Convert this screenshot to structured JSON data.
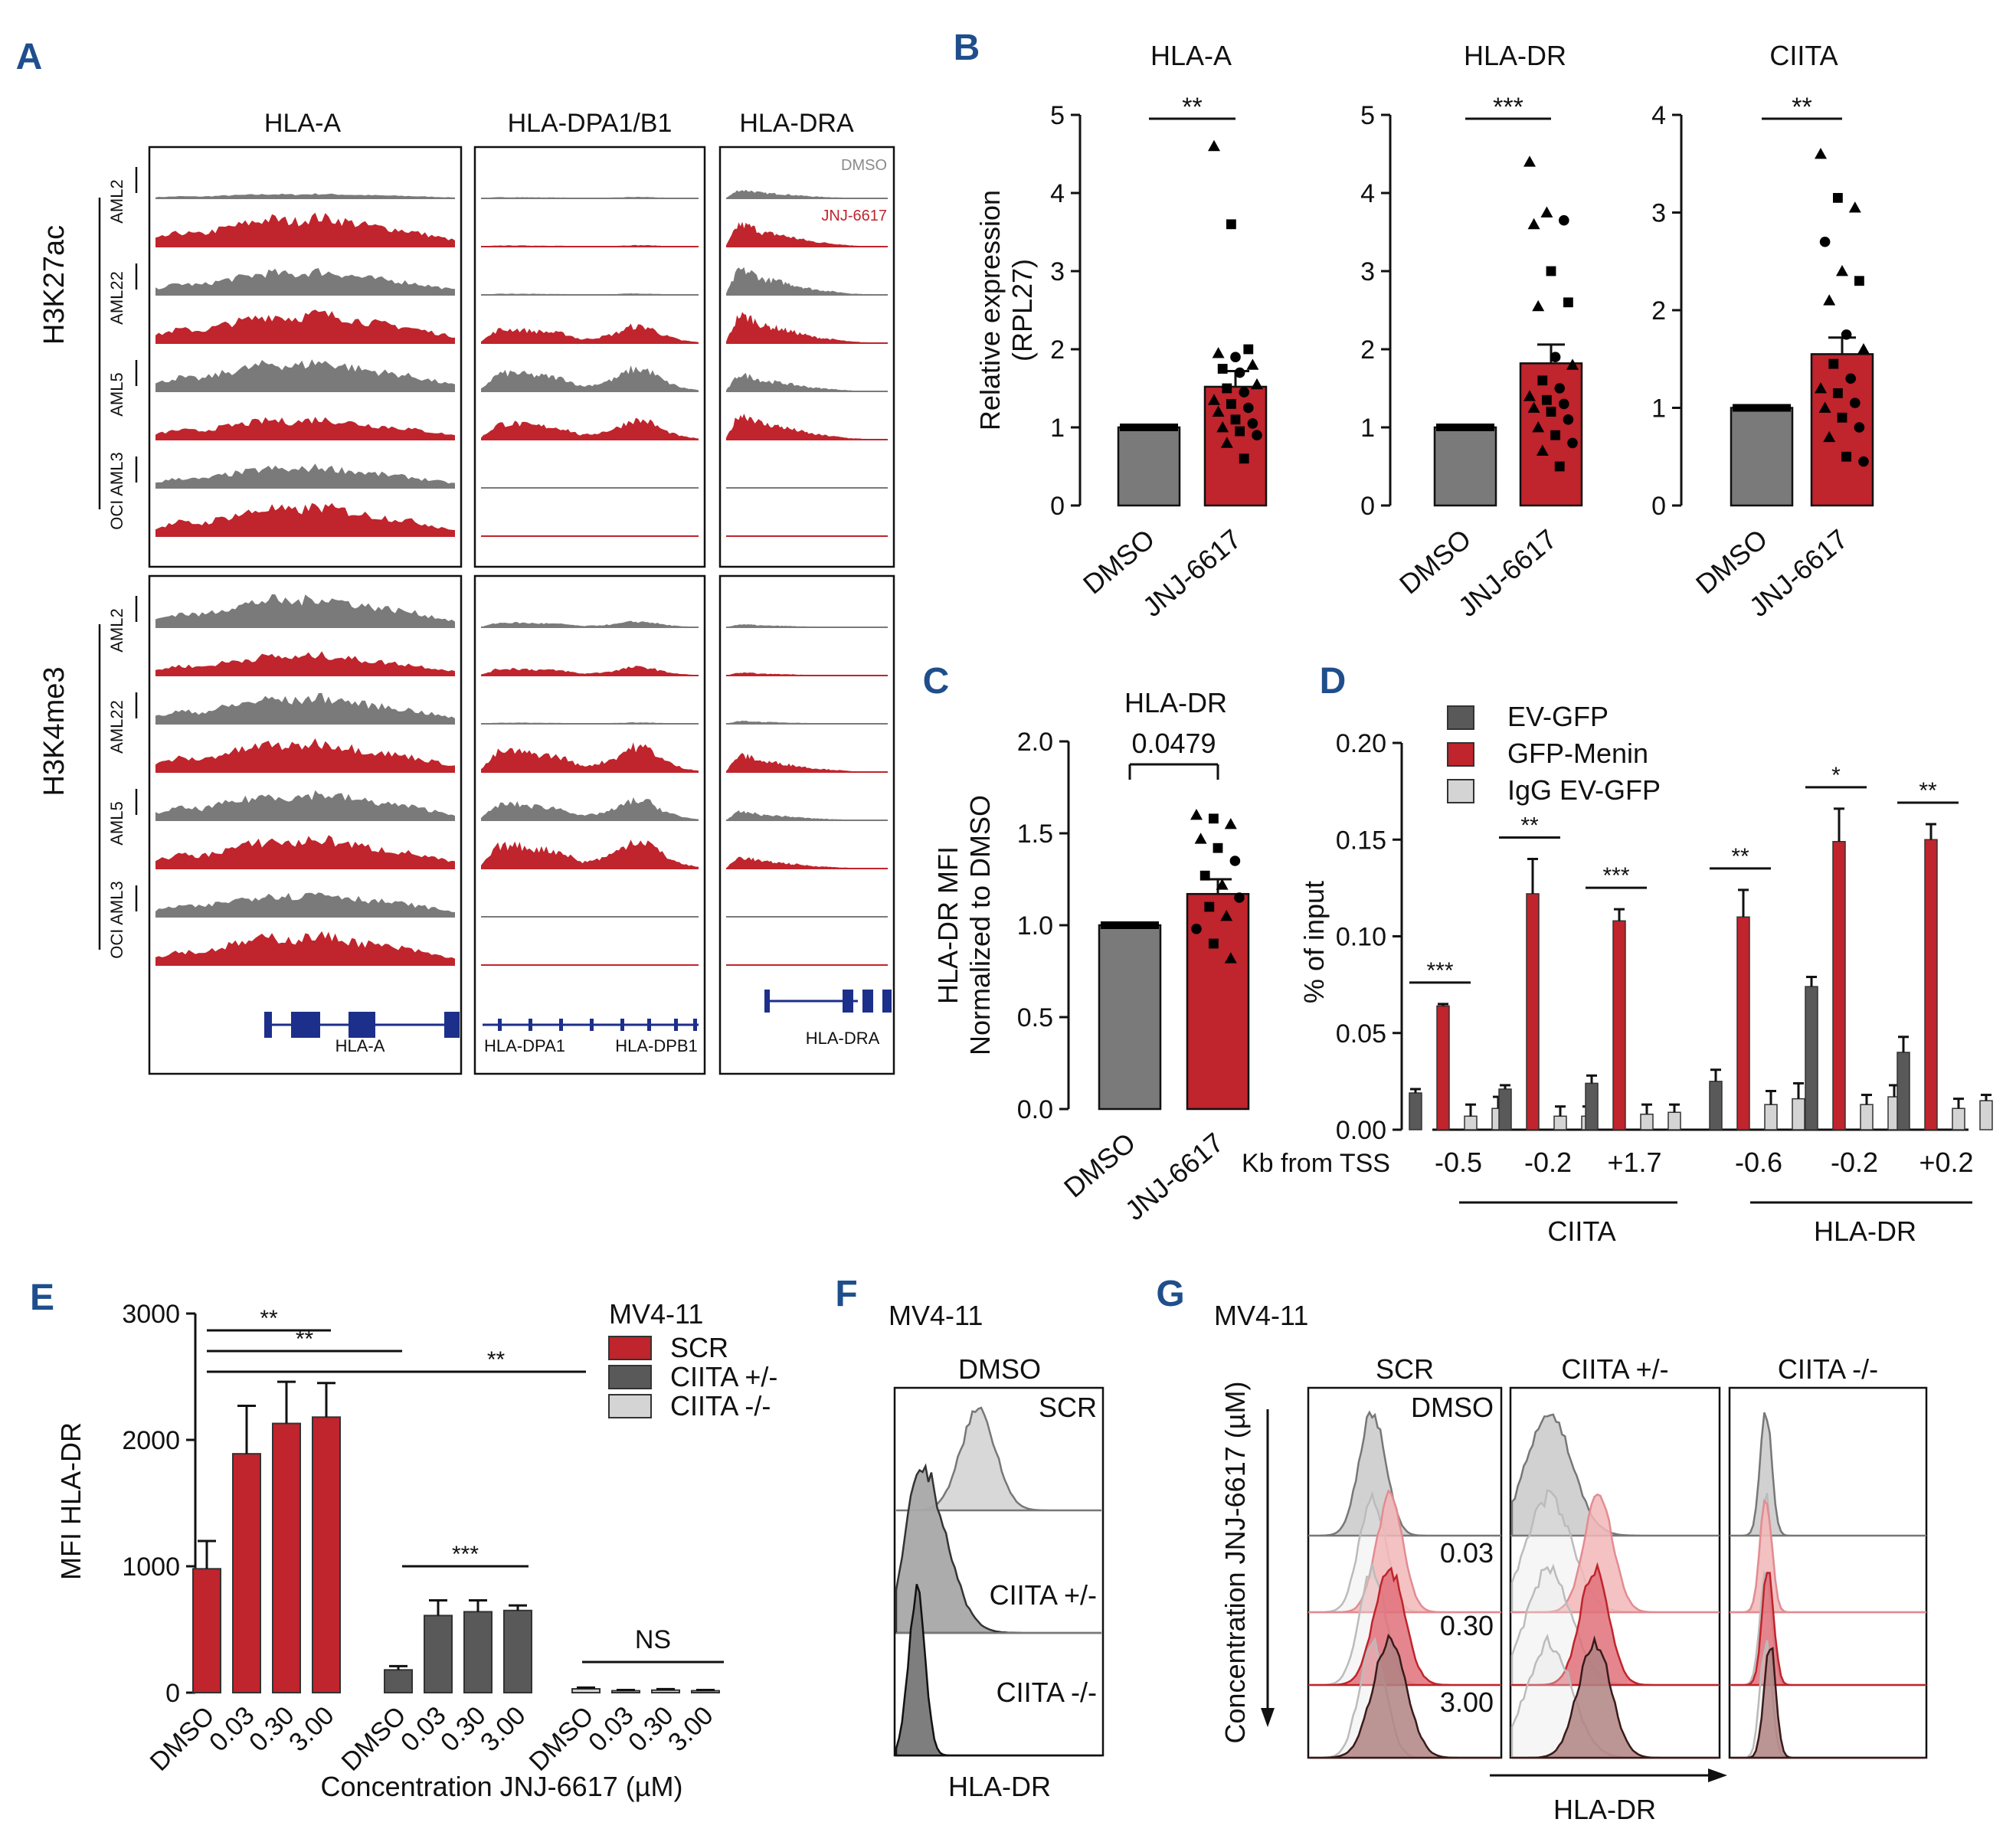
{
  "colors": {
    "red": "#c0242c",
    "grey": "#7a7a7a",
    "lightgrey": "#d4d4d4",
    "darkgrey": "#595959",
    "gene": "#1c2f8a",
    "letter": "#1f4e8c"
  },
  "panelA": {
    "letter": "A",
    "loci": [
      "HLA-A",
      "HLA-DPA1/B1",
      "HLA-DRA"
    ],
    "marks": [
      "H3K27ac",
      "H3K4me3"
    ],
    "samples": [
      "AML2",
      "AML22",
      "AML5",
      "OCI AML3"
    ],
    "legend": {
      "dmso": "DMSO",
      "jnj": "JNJ-6617"
    },
    "genes": [
      "HLA-A",
      "HLA-DPA1",
      "HLA-DPB1",
      "HLA-DRA"
    ]
  },
  "chart_data": [
    {
      "id": "B1",
      "letter": "B",
      "type": "bar",
      "title": "HLA-A",
      "ylabel": [
        "Relative expression",
        "(RPL27)"
      ],
      "categories": [
        "DMSO",
        "JNJ-6617"
      ],
      "values": [
        1.0,
        1.52
      ],
      "errors": [
        0.02,
        0.2
      ],
      "ylim": [
        0,
        5
      ],
      "yticks": [
        0,
        1,
        2,
        3,
        4,
        5
      ],
      "significance": "**",
      "points": [
        {
          "y": 4.6,
          "m": "tri"
        },
        {
          "y": 3.6,
          "m": "sq"
        },
        {
          "y": 2.0,
          "m": "sq"
        },
        {
          "y": 1.95,
          "m": "tri"
        },
        {
          "y": 1.9,
          "m": "dot"
        },
        {
          "y": 1.8,
          "m": "tri"
        },
        {
          "y": 1.75,
          "m": "sq"
        },
        {
          "y": 1.7,
          "m": "dot"
        },
        {
          "y": 1.55,
          "m": "tri"
        },
        {
          "y": 1.5,
          "m": "sq"
        },
        {
          "y": 1.45,
          "m": "dot"
        },
        {
          "y": 1.35,
          "m": "tri"
        },
        {
          "y": 1.3,
          "m": "sq"
        },
        {
          "y": 1.25,
          "m": "dot"
        },
        {
          "y": 1.2,
          "m": "tri"
        },
        {
          "y": 1.1,
          "m": "sq"
        },
        {
          "y": 1.05,
          "m": "dot"
        },
        {
          "y": 1.0,
          "m": "tri"
        },
        {
          "y": 0.95,
          "m": "sq"
        },
        {
          "y": 0.9,
          "m": "dot"
        },
        {
          "y": 0.8,
          "m": "tri"
        },
        {
          "y": 0.6,
          "m": "sq"
        }
      ]
    },
    {
      "id": "B2",
      "type": "bar",
      "title": "HLA-DR",
      "categories": [
        "DMSO",
        "JNJ-6617"
      ],
      "values": [
        1.0,
        1.82
      ],
      "errors": [
        0.02,
        0.24
      ],
      "ylim": [
        0,
        5
      ],
      "yticks": [
        0,
        1,
        2,
        3,
        4,
        5
      ],
      "significance": "***",
      "points": [
        {
          "y": 4.4,
          "m": "tri"
        },
        {
          "y": 3.75,
          "m": "tri"
        },
        {
          "y": 3.65,
          "m": "dot"
        },
        {
          "y": 3.6,
          "m": "tri"
        },
        {
          "y": 3.0,
          "m": "sq"
        },
        {
          "y": 2.6,
          "m": "sq"
        },
        {
          "y": 2.55,
          "m": "tri"
        },
        {
          "y": 1.9,
          "m": "dot"
        },
        {
          "y": 1.8,
          "m": "tri"
        },
        {
          "y": 1.6,
          "m": "sq"
        },
        {
          "y": 1.5,
          "m": "dot"
        },
        {
          "y": 1.4,
          "m": "tri"
        },
        {
          "y": 1.35,
          "m": "sq"
        },
        {
          "y": 1.3,
          "m": "dot"
        },
        {
          "y": 1.25,
          "m": "tri"
        },
        {
          "y": 1.2,
          "m": "sq"
        },
        {
          "y": 1.1,
          "m": "dot"
        },
        {
          "y": 1.0,
          "m": "tri"
        },
        {
          "y": 0.9,
          "m": "sq"
        },
        {
          "y": 0.8,
          "m": "dot"
        },
        {
          "y": 0.7,
          "m": "tri"
        },
        {
          "y": 0.5,
          "m": "sq"
        }
      ]
    },
    {
      "id": "B3",
      "type": "bar",
      "title": "CIITA",
      "categories": [
        "DMSO",
        "JNJ-6617"
      ],
      "values": [
        1.0,
        1.55
      ],
      "errors": [
        0.02,
        0.17
      ],
      "ylim": [
        0,
        4
      ],
      "yticks": [
        0,
        1,
        2,
        3,
        4
      ],
      "significance": "**",
      "points": [
        {
          "y": 3.6,
          "m": "tri"
        },
        {
          "y": 3.15,
          "m": "sq"
        },
        {
          "y": 3.05,
          "m": "tri"
        },
        {
          "y": 2.7,
          "m": "dot"
        },
        {
          "y": 2.4,
          "m": "tri"
        },
        {
          "y": 2.3,
          "m": "sq"
        },
        {
          "y": 2.1,
          "m": "tri"
        },
        {
          "y": 1.75,
          "m": "dot"
        },
        {
          "y": 1.6,
          "m": "tri"
        },
        {
          "y": 1.45,
          "m": "sq"
        },
        {
          "y": 1.3,
          "m": "dot"
        },
        {
          "y": 1.2,
          "m": "tri"
        },
        {
          "y": 1.15,
          "m": "sq"
        },
        {
          "y": 1.05,
          "m": "dot"
        },
        {
          "y": 1.0,
          "m": "tri"
        },
        {
          "y": 0.9,
          "m": "sq"
        },
        {
          "y": 0.8,
          "m": "dot"
        },
        {
          "y": 0.7,
          "m": "tri"
        },
        {
          "y": 0.5,
          "m": "sq"
        },
        {
          "y": 0.45,
          "m": "dot"
        }
      ]
    },
    {
      "id": "C",
      "letter": "C",
      "type": "bar",
      "title": "HLA-DR",
      "ylabel": [
        "HLA-DR MFI",
        "Normalized to DMSO"
      ],
      "categories": [
        "DMSO",
        "JNJ-6617"
      ],
      "values": [
        1.0,
        1.17
      ],
      "errors": [
        0.01,
        0.08
      ],
      "ylim": [
        0,
        2.0
      ],
      "yticks": [
        "0.0",
        "0.5",
        "1.0",
        "1.5",
        "2.0"
      ],
      "pvalue": "0.0479",
      "points": [
        {
          "y": 1.6,
          "m": "tri"
        },
        {
          "y": 1.58,
          "m": "sq"
        },
        {
          "y": 1.55,
          "m": "tri"
        },
        {
          "y": 1.47,
          "m": "tri"
        },
        {
          "y": 1.42,
          "m": "sq"
        },
        {
          "y": 1.35,
          "m": "dot"
        },
        {
          "y": 1.27,
          "m": "sq"
        },
        {
          "y": 1.22,
          "m": "tri"
        },
        {
          "y": 1.15,
          "m": "dot"
        },
        {
          "y": 1.1,
          "m": "sq"
        },
        {
          "y": 1.05,
          "m": "tri"
        },
        {
          "y": 0.98,
          "m": "dot"
        },
        {
          "y": 0.9,
          "m": "sq"
        },
        {
          "y": 0.82,
          "m": "tri"
        }
      ]
    },
    {
      "id": "D",
      "letter": "D",
      "type": "bar",
      "ylabel": "% of input",
      "xlabel": "Kb from TSS",
      "categories": [
        "-0.5",
        "-0.2",
        "+1.7",
        "-0.6",
        "-0.2",
        "+0.2"
      ],
      "groups": [
        {
          "name": "CIITA",
          "from": 0,
          "to": 2
        },
        {
          "name": "HLA-DR",
          "from": 3,
          "to": 5
        }
      ],
      "series": [
        {
          "name": "EV-GFP",
          "values": [
            0.019,
            0.021,
            0.024,
            0.025,
            0.074,
            0.04
          ],
          "errors": [
            0.002,
            0.002,
            0.004,
            0.006,
            0.005,
            0.008
          ]
        },
        {
          "name": "GFP-Menin",
          "values": [
            0.064,
            0.122,
            0.108,
            0.11,
            0.149,
            0.15
          ],
          "errors": [
            0.001,
            0.018,
            0.006,
            0.014,
            0.017,
            0.008
          ]
        },
        {
          "name": "IgG EV-GFP",
          "values": [
            0.007,
            0.007,
            0.008,
            0.013,
            0.013,
            0.011
          ],
          "errors": [
            0.006,
            0.005,
            0.005,
            0.007,
            0.005,
            0.005
          ]
        },
        {
          "name": "",
          "values": [
            0.011,
            0.007,
            0.009,
            0.016,
            0.017,
            0.015
          ],
          "errors": [
            0.006,
            0.005,
            0.004,
            0.008,
            0.006,
            0.003
          ]
        }
      ],
      "ylim": [
        0,
        0.2
      ],
      "yticks": [
        "0.00",
        "0.05",
        "0.10",
        "0.15",
        "0.20"
      ],
      "significance": [
        "***",
        "**",
        "***",
        "**",
        "*",
        "**"
      ]
    },
    {
      "id": "E",
      "letter": "E",
      "type": "bar",
      "title": "MV4-11",
      "ylabel": "MFI HLA-DR",
      "xlabel": "Concentration JNJ-6617 (µM)",
      "categories": [
        "DMSO",
        "0.03",
        "0.30",
        "3.00"
      ],
      "series": [
        {
          "name": "SCR",
          "values": [
            980,
            1890,
            2130,
            2180
          ],
          "errors": [
            220,
            380,
            330,
            270
          ]
        },
        {
          "name": "CIITA +/-",
          "values": [
            180,
            610,
            640,
            650
          ],
          "errors": [
            30,
            120,
            90,
            40
          ]
        },
        {
          "name": "CIITA -/-",
          "values": [
            30,
            15,
            20,
            15
          ],
          "errors": [
            10,
            6,
            8,
            6
          ]
        }
      ],
      "ylim": [
        0,
        3000
      ],
      "yticks": [
        0,
        1000,
        2000,
        3000
      ],
      "significance": [
        "**",
        "**",
        "**",
        "***",
        "NS"
      ]
    }
  ],
  "panelF": {
    "letter": "F",
    "title": "MV4-11",
    "treatment": "DMSO",
    "labels": [
      "SCR",
      "CIITA +/-",
      "CIITA -/-"
    ],
    "xlabel": "HLA-DR"
  },
  "panelG": {
    "letter": "G",
    "title": "MV4-11",
    "columns": [
      "SCR",
      "CIITA +/-",
      "CIITA -/-"
    ],
    "rows": [
      "DMSO",
      "0.03",
      "0.30",
      "3.00"
    ],
    "ylabel": "Concentration JNJ-6617 (µM)",
    "xlabel": "HLA-DR"
  }
}
